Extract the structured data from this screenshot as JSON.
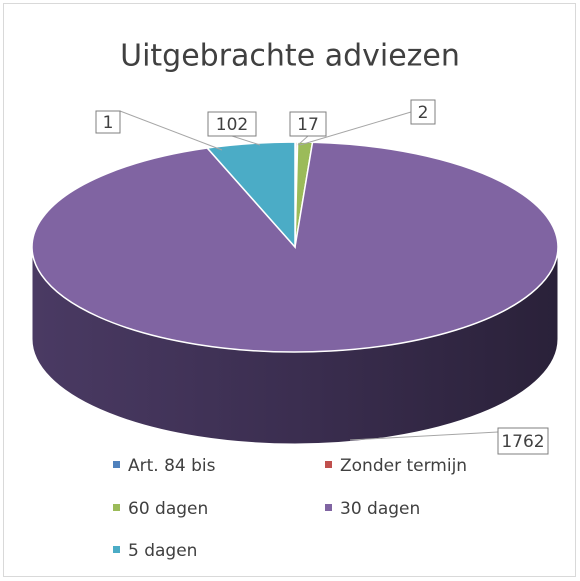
{
  "chart_data": {
    "type": "pie",
    "title": "Uitgebrachte adviezen",
    "categories": [
      "Art. 84 bis",
      "Zonder termijn",
      "60 dagen",
      "30 dagen",
      "5 dagen"
    ],
    "values": [
      1,
      2,
      17,
      1762,
      102
    ],
    "colors": [
      "#4f81bd",
      "#c0504d",
      "#9bbb59",
      "#8064a2",
      "#4bacc6"
    ],
    "legend": "bottom"
  }
}
